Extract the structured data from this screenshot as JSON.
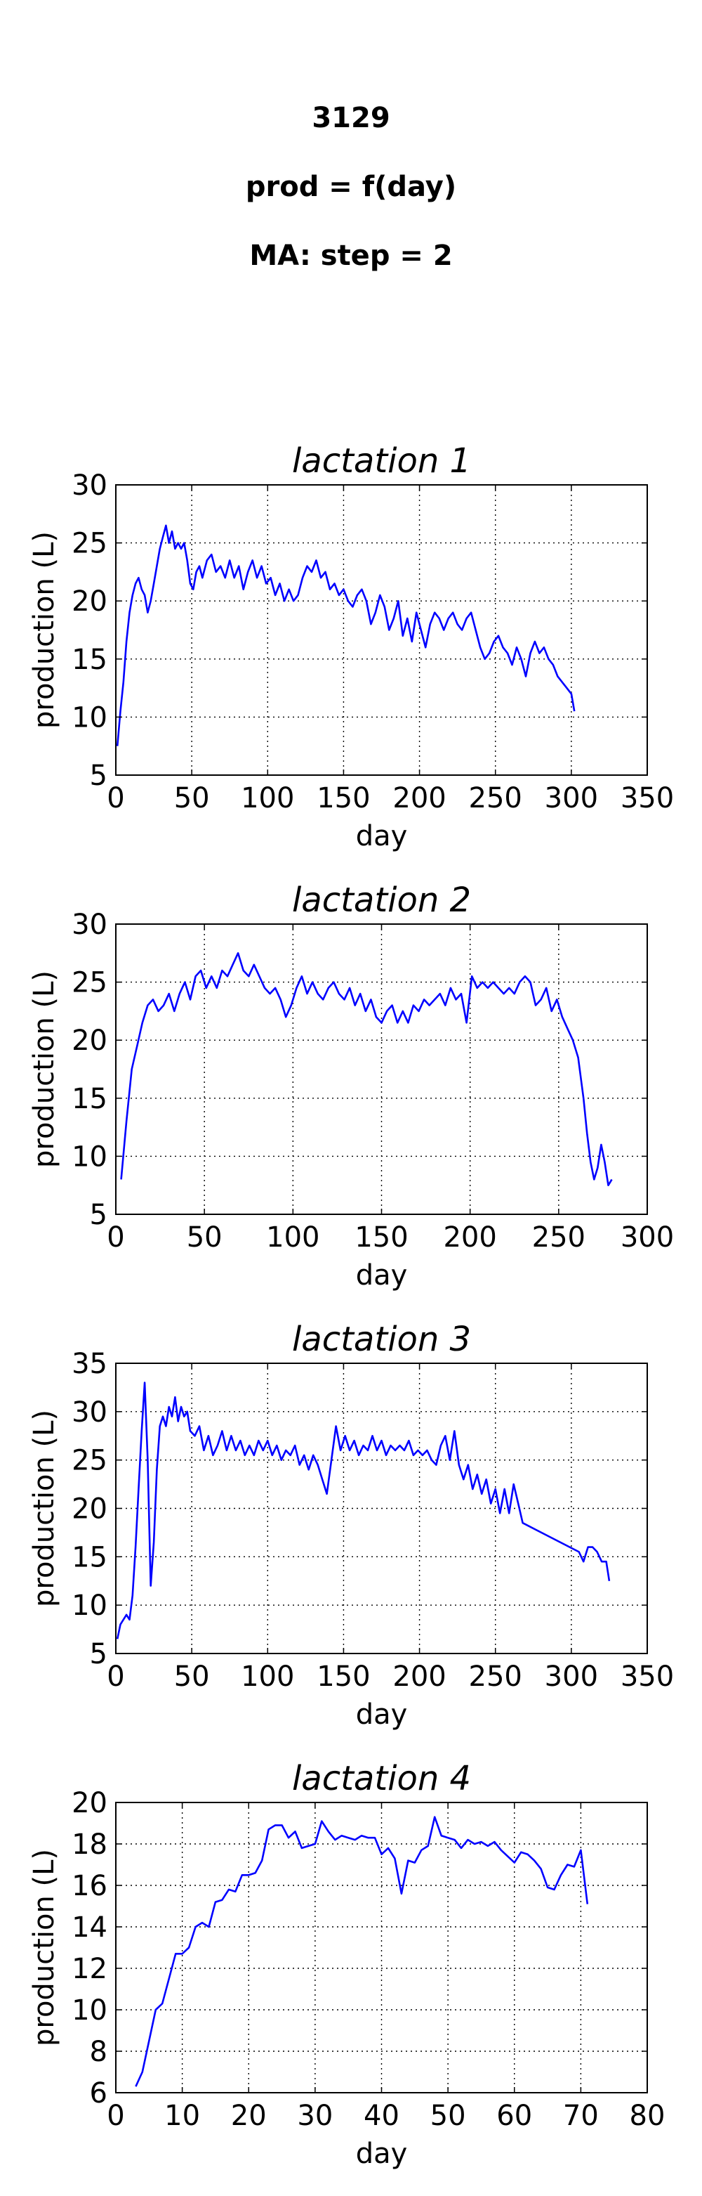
{
  "header": {
    "cow_id": "3129",
    "formula": "prod = f(day)",
    "smoothing": "MA: step = 2"
  },
  "chart_data": [
    {
      "type": "line",
      "title": "lactation 1",
      "xlabel": "day",
      "ylabel": "production (L)",
      "xlim": [
        0,
        350
      ],
      "ylim": [
        5,
        30
      ],
      "xticks": [
        0,
        50,
        100,
        150,
        200,
        250,
        300,
        350
      ],
      "yticks": [
        5,
        10,
        15,
        20,
        25,
        30
      ],
      "grid": true,
      "line_color": "#0000ff",
      "series": [
        {
          "x": [
            1,
            3,
            5,
            7,
            9,
            11,
            13,
            15,
            17,
            19,
            21,
            23,
            25,
            27,
            29,
            31,
            33,
            35,
            37,
            39,
            41,
            43,
            45,
            47,
            49,
            51,
            53,
            55,
            57,
            60,
            63,
            66,
            69,
            72,
            75,
            78,
            81,
            84,
            87,
            90,
            93,
            96,
            99,
            102,
            105,
            108,
            111,
            114,
            117,
            120,
            123,
            126,
            129,
            132,
            135,
            138,
            141,
            144,
            147,
            150,
            153,
            156,
            159,
            162,
            165,
            168,
            171,
            174,
            177,
            180,
            183,
            186,
            189,
            192,
            195,
            198,
            201,
            204,
            207,
            210,
            213,
            216,
            219,
            222,
            225,
            228,
            231,
            234,
            237,
            240,
            243,
            246,
            249,
            252,
            255,
            258,
            261,
            264,
            267,
            270,
            273,
            276,
            279,
            282,
            285,
            288,
            291,
            294,
            297,
            300,
            302
          ],
          "y": [
            7.5,
            10.5,
            13,
            16.5,
            19,
            20.5,
            21.5,
            22,
            21,
            20.5,
            19,
            20,
            21.5,
            23,
            24.5,
            25.5,
            26.5,
            25,
            26,
            24.5,
            25,
            24.5,
            25,
            23.5,
            21.5,
            21,
            22.5,
            23,
            22,
            23.5,
            24,
            22.5,
            23,
            22,
            23.5,
            22,
            23,
            21,
            22.5,
            23.5,
            22,
            23,
            21.5,
            22,
            20.5,
            21.5,
            20,
            21,
            20,
            20.5,
            22,
            23,
            22.5,
            23.5,
            22,
            22.5,
            21,
            21.5,
            20.5,
            21,
            20,
            19.5,
            20.5,
            21,
            20,
            18,
            19,
            20.5,
            19.5,
            17.5,
            18.5,
            20,
            17,
            18.5,
            16.5,
            19,
            17.5,
            16,
            18,
            19,
            18.5,
            17.5,
            18.5,
            19,
            18,
            17.5,
            18.5,
            19,
            17.5,
            16,
            15,
            15.5,
            16.5,
            17,
            16,
            15.5,
            14.5,
            16,
            15,
            13.5,
            15.5,
            16.5,
            15.5,
            16,
            15,
            14.5,
            13.5,
            13,
            12.5,
            12,
            10.5
          ]
        }
      ]
    },
    {
      "type": "line",
      "title": "lactation 2",
      "xlabel": "day",
      "ylabel": "production (L)",
      "xlim": [
        0,
        300
      ],
      "ylim": [
        5,
        30
      ],
      "xticks": [
        0,
        50,
        100,
        150,
        200,
        250,
        300
      ],
      "yticks": [
        5,
        10,
        15,
        20,
        25,
        30
      ],
      "grid": true,
      "line_color": "#0000ff",
      "series": [
        {
          "x": [
            3,
            6,
            9,
            12,
            15,
            18,
            21,
            24,
            27,
            30,
            33,
            36,
            39,
            42,
            45,
            48,
            51,
            54,
            57,
            60,
            63,
            66,
            69,
            72,
            75,
            78,
            81,
            84,
            87,
            90,
            93,
            96,
            99,
            102,
            105,
            108,
            111,
            114,
            117,
            120,
            123,
            126,
            129,
            132,
            135,
            138,
            141,
            144,
            147,
            150,
            153,
            156,
            159,
            162,
            165,
            168,
            171,
            174,
            177,
            180,
            183,
            186,
            189,
            192,
            195,
            198,
            201,
            204,
            207,
            210,
            213,
            216,
            219,
            222,
            225,
            228,
            231,
            234,
            237,
            240,
            243,
            246,
            249,
            252,
            255,
            258,
            261,
            264,
            266,
            268,
            270,
            272,
            274,
            276,
            278,
            280
          ],
          "y": [
            8,
            13,
            17.5,
            19.5,
            21.5,
            23,
            23.5,
            22.5,
            23,
            24,
            22.5,
            24,
            25,
            23.5,
            25.5,
            26,
            24.5,
            25.5,
            24.5,
            26,
            25.5,
            26.5,
            27.5,
            26,
            25.5,
            26.5,
            25.5,
            24.5,
            24,
            24.5,
            23.5,
            22,
            23,
            24.5,
            25.5,
            24,
            25,
            24,
            23.5,
            24.5,
            25,
            24,
            23.5,
            24.5,
            23,
            24,
            22.5,
            23.5,
            22,
            21.5,
            22.5,
            23,
            21.5,
            22.5,
            21.5,
            23,
            22.5,
            23.5,
            23,
            23.5,
            24,
            23,
            24.5,
            23.5,
            24,
            21.5,
            25.5,
            24.5,
            25,
            24.5,
            25,
            24.5,
            24,
            24.5,
            24,
            25,
            25.5,
            25,
            23,
            23.5,
            24.5,
            22.5,
            23.5,
            22,
            21,
            20,
            18.5,
            15,
            12,
            9.5,
            8,
            9,
            11,
            9.5,
            7.5,
            8
          ]
        }
      ]
    },
    {
      "type": "line",
      "title": "lactation 3",
      "xlabel": "day",
      "ylabel": "production (L)",
      "xlim": [
        0,
        350
      ],
      "ylim": [
        5,
        35
      ],
      "xticks": [
        0,
        50,
        100,
        150,
        200,
        250,
        300,
        350
      ],
      "yticks": [
        5,
        10,
        15,
        20,
        25,
        30,
        35
      ],
      "grid": true,
      "line_color": "#0000ff",
      "series": [
        {
          "x": [
            1,
            3,
            5,
            7,
            9,
            11,
            13,
            15,
            17,
            19,
            21,
            23,
            25,
            27,
            29,
            31,
            33,
            35,
            37,
            39,
            41,
            43,
            45,
            47,
            49,
            52,
            55,
            58,
            61,
            64,
            67,
            70,
            73,
            76,
            79,
            82,
            85,
            88,
            91,
            94,
            97,
            100,
            103,
            106,
            109,
            112,
            115,
            118,
            121,
            124,
            127,
            130,
            133,
            136,
            139,
            142,
            145,
            148,
            151,
            154,
            157,
            160,
            163,
            166,
            169,
            172,
            175,
            178,
            181,
            184,
            187,
            190,
            193,
            196,
            199,
            202,
            205,
            208,
            211,
            214,
            217,
            220,
            223,
            226,
            229,
            232,
            235,
            238,
            241,
            244,
            247,
            250,
            253,
            256,
            259,
            262,
            265,
            268,
            305,
            308,
            311,
            314,
            317,
            320,
            323,
            325
          ],
          "y": [
            6.5,
            8,
            8.5,
            9,
            8.5,
            11,
            16,
            22,
            28,
            33,
            25,
            12,
            16.5,
            24,
            28.5,
            29.5,
            28.5,
            30.5,
            29.5,
            31.5,
            29,
            30.5,
            29.5,
            30,
            28,
            27.5,
            28.5,
            26,
            27.5,
            25.5,
            26.5,
            28,
            26,
            27.5,
            26,
            27,
            25.5,
            26.5,
            25.5,
            27,
            26,
            27,
            25.5,
            26.5,
            25,
            26,
            25.5,
            26.5,
            24.5,
            25.5,
            24,
            25.5,
            24.5,
            23,
            21.5,
            25,
            28.5,
            26,
            27.5,
            26,
            27,
            25.5,
            26.5,
            26,
            27.5,
            26,
            27,
            25.5,
            26.5,
            26,
            26.5,
            26,
            27,
            25.5,
            26,
            25.5,
            26,
            25,
            24.5,
            26.5,
            27.5,
            25,
            28,
            24.5,
            23,
            24.5,
            22,
            23.5,
            21.5,
            23,
            20.5,
            22,
            19.5,
            22,
            19.5,
            22.5,
            20.5,
            18.5,
            15.5,
            14.5,
            16,
            16,
            15.5,
            14.5,
            14.5,
            12.5
          ]
        }
      ]
    },
    {
      "type": "line",
      "title": "lactation 4",
      "xlabel": "day",
      "ylabel": "production (L)",
      "xlim": [
        0,
        80
      ],
      "ylim": [
        6,
        20
      ],
      "xticks": [
        0,
        10,
        20,
        30,
        40,
        50,
        60,
        70,
        80
      ],
      "yticks": [
        6,
        8,
        10,
        12,
        14,
        16,
        18,
        20
      ],
      "grid": true,
      "line_color": "#0000ff",
      "series": [
        {
          "x": [
            3,
            4,
            5,
            6,
            7,
            8,
            9,
            10,
            11,
            12,
            13,
            14,
            15,
            16,
            17,
            18,
            19,
            20,
            21,
            22,
            23,
            24,
            25,
            26,
            27,
            28,
            29,
            30,
            31,
            32,
            33,
            34,
            35,
            36,
            37,
            38,
            39,
            40,
            41,
            42,
            43,
            44,
            45,
            46,
            47,
            48,
            49,
            50,
            51,
            52,
            53,
            54,
            55,
            56,
            57,
            58,
            59,
            60,
            61,
            62,
            63,
            64,
            65,
            66,
            67,
            68,
            69,
            70,
            71
          ],
          "y": [
            6.3,
            7,
            8.5,
            10,
            10.3,
            11.5,
            12.7,
            12.7,
            13,
            14,
            14.2,
            14,
            15.2,
            15.3,
            15.8,
            15.7,
            16.5,
            16.5,
            16.6,
            17.2,
            18.7,
            18.9,
            18.9,
            18.3,
            18.6,
            17.8,
            17.9,
            18,
            19.1,
            18.6,
            18.2,
            18.4,
            18.3,
            18.2,
            18.4,
            18.3,
            18.3,
            17.5,
            17.8,
            17.3,
            15.6,
            17.2,
            17.1,
            17.7,
            17.9,
            19.3,
            18.4,
            18.3,
            18.2,
            17.8,
            18.2,
            18,
            18.1,
            17.9,
            18.1,
            17.7,
            17.4,
            17.1,
            17.6,
            17.5,
            17.2,
            16.8,
            15.9,
            15.8,
            16.5,
            17,
            16.9,
            17.7,
            15.1
          ]
        }
      ]
    }
  ]
}
